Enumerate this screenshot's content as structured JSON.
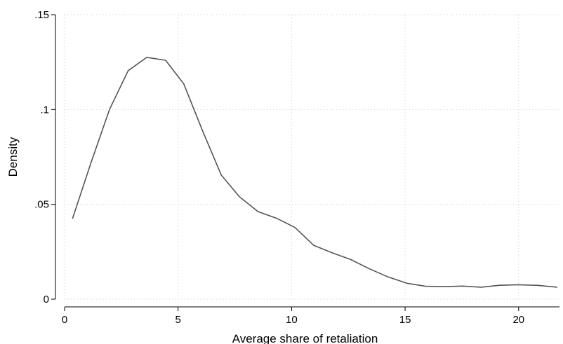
{
  "chart_data": {
    "type": "line",
    "title": "",
    "xlabel": "Average share of retaliation",
    "ylabel": "Density",
    "xlim": [
      0,
      21.8
    ],
    "ylim": [
      0,
      0.15
    ],
    "x_ticks": [
      0,
      5,
      10,
      15,
      20
    ],
    "x_tick_labels": [
      "0",
      "5",
      "10",
      "15",
      "20"
    ],
    "y_ticks": [
      0,
      0.05,
      0.1,
      0.15
    ],
    "y_tick_labels": [
      "0",
      ".05",
      ".1",
      ".15"
    ],
    "grid": true,
    "line_color": "#555555",
    "series": [
      {
        "x": [
          0.35,
          1.15,
          1.98,
          2.8,
          3.62,
          4.45,
          5.25,
          6.07,
          6.9,
          7.7,
          8.52,
          9.35,
          10.15,
          10.97,
          11.8,
          12.6,
          13.43,
          14.25,
          15.08,
          15.9,
          16.7,
          17.52,
          18.35,
          19.15,
          19.97,
          20.8,
          21.7
        ],
        "y": [
          0.0425,
          0.0715,
          0.1,
          0.1205,
          0.1275,
          0.126,
          0.1135,
          0.089,
          0.0655,
          0.054,
          0.0462,
          0.0426,
          0.0378,
          0.0284,
          0.0244,
          0.0209,
          0.016,
          0.0117,
          0.0084,
          0.0068,
          0.0066,
          0.0069,
          0.0063,
          0.0073,
          0.0076,
          0.0073,
          0.0063
        ]
      }
    ]
  }
}
